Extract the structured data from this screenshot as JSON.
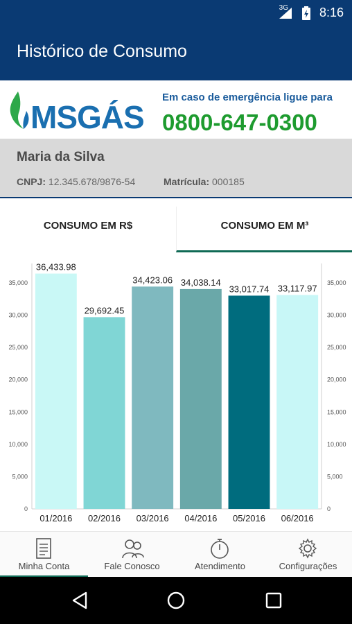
{
  "status": {
    "network": "3G",
    "time": "8:16"
  },
  "appbar": {
    "title": "Histórico de Consumo"
  },
  "brand": {
    "logo_text": "MSGÁS",
    "emergency_label": "Em caso de emergência ligue para",
    "emergency_phone": "0800-647-0300",
    "colors": {
      "blue": "#1a6fb0",
      "green": "#1e9b2f"
    }
  },
  "user": {
    "name": "Maria da Silva",
    "cnpj_label": "CNPJ:",
    "cnpj_value": "12.345.678/9876-54",
    "matricula_label": "Matrícula:",
    "matricula_value": "000185"
  },
  "tabs": [
    {
      "label": "CONSUMO EM R$",
      "active": false
    },
    {
      "label": "CONSUMO EM M³",
      "active": true
    }
  ],
  "chart_data": {
    "type": "bar",
    "categories": [
      "01/2016",
      "02/2016",
      "03/2016",
      "04/2016",
      "05/2016",
      "06/2016"
    ],
    "values": [
      36433.98,
      29692.45,
      34423.06,
      34038.14,
      33017.74,
      33117.97
    ],
    "value_labels": [
      "36,433.98",
      "29,692.45",
      "34,423.06",
      "34,038.14",
      "33,017.74",
      "33,117.97"
    ],
    "colors": [
      "#c9f8f6",
      "#80d6d5",
      "#7fb9bf",
      "#6aa8a9",
      "#006c7e",
      "#c8f7f7"
    ],
    "yticks": [
      "0",
      "5,000",
      "10,000",
      "15,000",
      "20,000",
      "25,000",
      "30,000",
      "35,000"
    ],
    "ylim": [
      0,
      38000
    ],
    "title": "",
    "xlabel": "",
    "ylabel": ""
  },
  "nav": [
    {
      "label": "Minha Conta",
      "icon": "document-icon",
      "active": true
    },
    {
      "label": "Fale Conosco",
      "icon": "people-icon",
      "active": false
    },
    {
      "label": "Atendimento",
      "icon": "stopwatch-icon",
      "active": false
    },
    {
      "label": "Configurações",
      "icon": "gear-icon",
      "active": false
    }
  ],
  "system_nav": {
    "back": "back-icon",
    "home": "home-icon",
    "recents": "recents-icon"
  }
}
